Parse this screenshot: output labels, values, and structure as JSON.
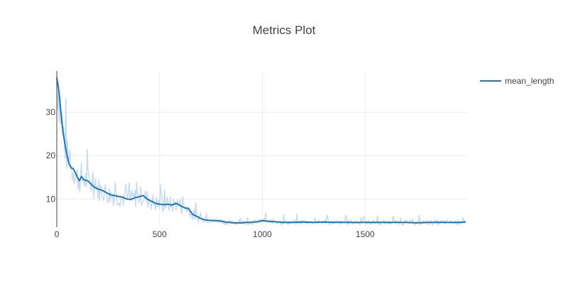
{
  "chart_data": {
    "type": "line",
    "title": "Metrics Plot",
    "xlabel": "",
    "ylabel": "",
    "xlim": [
      0,
      2000
    ],
    "ylim": [
      3.5,
      39.5
    ],
    "xticks": [
      0,
      500,
      1000,
      1500
    ],
    "yticks": [
      10,
      20,
      30
    ],
    "grid": true,
    "legend_position": "top-right",
    "colors": {
      "smoothed": "#1f77b4",
      "raw": "#c6dbef",
      "grid": "#eeeeee",
      "axis": "#444444"
    },
    "series": [
      {
        "name": "mean_length",
        "x": [
          0,
          10,
          20,
          30,
          40,
          50,
          60,
          70,
          80,
          90,
          100,
          110,
          120,
          130,
          140,
          150,
          160,
          180,
          200,
          220,
          240,
          260,
          280,
          300,
          320,
          340,
          360,
          380,
          400,
          420,
          440,
          460,
          480,
          500,
          520,
          540,
          560,
          580,
          600,
          620,
          640,
          660,
          680,
          700,
          720,
          740,
          760,
          780,
          800,
          820,
          840,
          860,
          880,
          900,
          920,
          940,
          960,
          980,
          1000,
          1020,
          1040,
          1060,
          1080,
          1100,
          1150,
          1200,
          1250,
          1300,
          1350,
          1400,
          1450,
          1500,
          1550,
          1600,
          1650,
          1700,
          1750,
          1800,
          1850,
          1900,
          1950,
          1990
        ],
        "values": [
          38.0,
          35.0,
          30.0,
          25.5,
          22.5,
          20.0,
          18.0,
          17.2,
          17.0,
          16.0,
          15.0,
          14.2,
          15.2,
          14.5,
          14.3,
          14.2,
          13.8,
          12.8,
          12.3,
          12.0,
          11.5,
          11.0,
          10.8,
          10.6,
          10.4,
          10.0,
          9.9,
          10.3,
          10.5,
          10.8,
          10.0,
          9.5,
          9.0,
          8.8,
          8.7,
          8.8,
          8.6,
          9.0,
          8.5,
          8.0,
          7.8,
          6.5,
          6.0,
          5.5,
          5.2,
          5.1,
          5.0,
          5.0,
          4.9,
          4.7,
          4.6,
          4.5,
          4.5,
          4.5,
          4.6,
          4.6,
          4.7,
          4.8,
          5.0,
          4.9,
          4.8,
          4.8,
          4.7,
          4.6,
          4.6,
          4.7,
          4.6,
          4.7,
          4.6,
          4.6,
          4.6,
          4.6,
          4.6,
          4.6,
          4.6,
          4.6,
          4.5,
          4.6,
          4.6,
          4.6,
          4.6,
          4.7
        ]
      }
    ]
  }
}
